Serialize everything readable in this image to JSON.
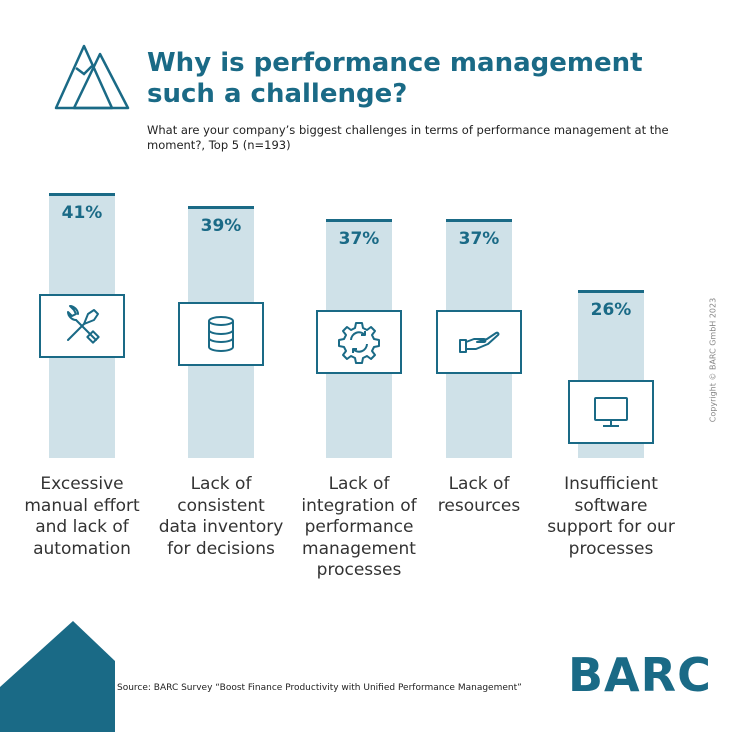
{
  "header": {
    "title": "Why is performance management such a challenge?",
    "subtitle": "What are your company’s biggest challenges in terms of performance management at the moment?, Top 5 (n=193)"
  },
  "copyright": "Copyright © BARC GmbH 2023",
  "chart_data": {
    "type": "bar",
    "categories": [
      "Excessive manual effort and lack of automation",
      "Lack of consistent data inventory for decisions",
      "Lack of integration of performance management processes",
      "Lack of resources",
      "Insufficient software support for our processes"
    ],
    "values": [
      41,
      39,
      37,
      37,
      26
    ],
    "value_labels": [
      "41%",
      "39%",
      "37%",
      "37%",
      "26%"
    ],
    "icons": [
      "tools-icon",
      "database-icon",
      "gear-cycle-icon",
      "hand-icon",
      "monitor-icon"
    ],
    "ylim": [
      0,
      45
    ],
    "grid": false,
    "bar_color": "#cfe1e8",
    "accent_color": "#1a6a86"
  },
  "footer": {
    "source": "Source: BARC Survey “Boost Finance Productivity with Unified Performance Management”",
    "brand": "BARC"
  }
}
